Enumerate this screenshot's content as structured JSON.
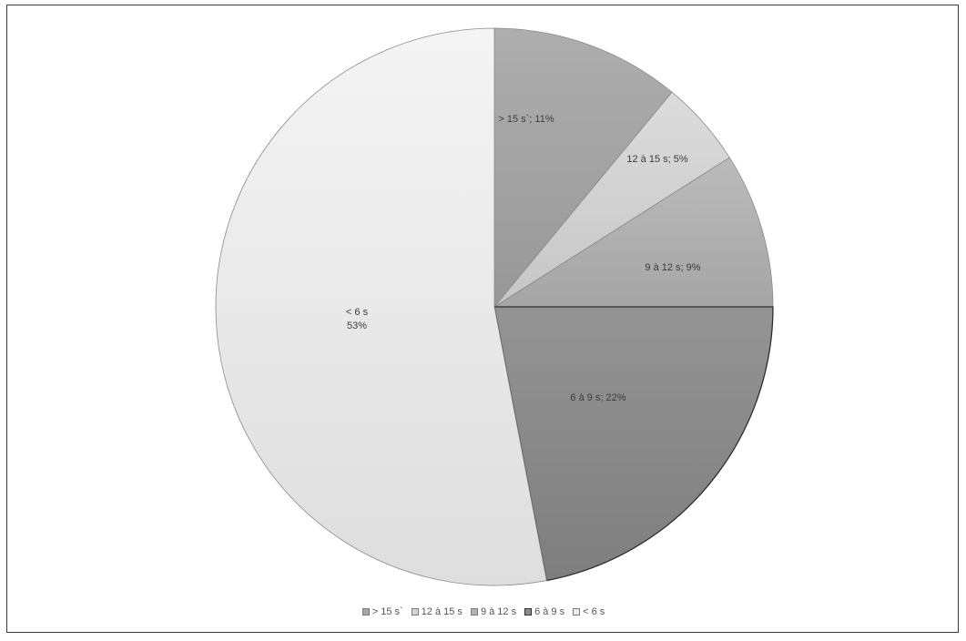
{
  "chart_data": {
    "type": "pie",
    "start_angle_deg": 0,
    "direction": "clockwise",
    "legend_position": "bottom",
    "slices": [
      {
        "name": "> 15 s`",
        "value": 11,
        "label": "> 15 s`; 11%",
        "color": "#a6a6a6"
      },
      {
        "name": "12 à 15 s",
        "value": 5,
        "label": "12 à 15 s; 5%",
        "color": "#d4d4d4"
      },
      {
        "name": "9 à 12 s",
        "value": 9,
        "label": "9 à 12 s; 9%",
        "color": "#b3b3b3"
      },
      {
        "name": "6 à 9 s",
        "value": 22,
        "label": "6 à 9 s; 22%",
        "color": "#8c8c8c"
      },
      {
        "name": "< 6 s",
        "value": 53,
        "label": "< 6 s\n53%",
        "color": "#ececec"
      }
    ]
  }
}
